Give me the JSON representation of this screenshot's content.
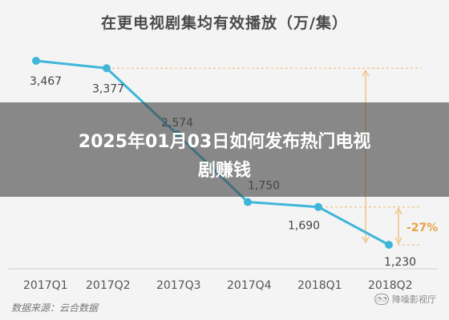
{
  "chart_data": {
    "type": "line",
    "title": "在更电视剧集均有效播放（万/集）",
    "categories": [
      "2017Q1",
      "2017Q2",
      "2017Q3",
      "2017Q4",
      "2018Q1",
      "2018Q2"
    ],
    "series": [
      {
        "values": [
          3467,
          3377,
          2574,
          1750,
          1690,
          1230
        ]
      }
    ],
    "value_labels": [
      "3,467",
      "3,377",
      "2,574",
      "1,750",
      "1,690",
      "1,230"
    ],
    "annotation": "-27%",
    "ylim": [
      1000,
      3700
    ],
    "line_color": "#3fb6d8",
    "accent_color": "#f0b56a",
    "annotation_color": "#e8a048"
  },
  "source_text": "数据来源：云合数据",
  "watermark_text": "降噪影视厅",
  "watermark_icon": "wechat-icon",
  "overlay": {
    "line1": "2025年01月03日如何发布热门电视",
    "line2": "剧赚钱"
  }
}
